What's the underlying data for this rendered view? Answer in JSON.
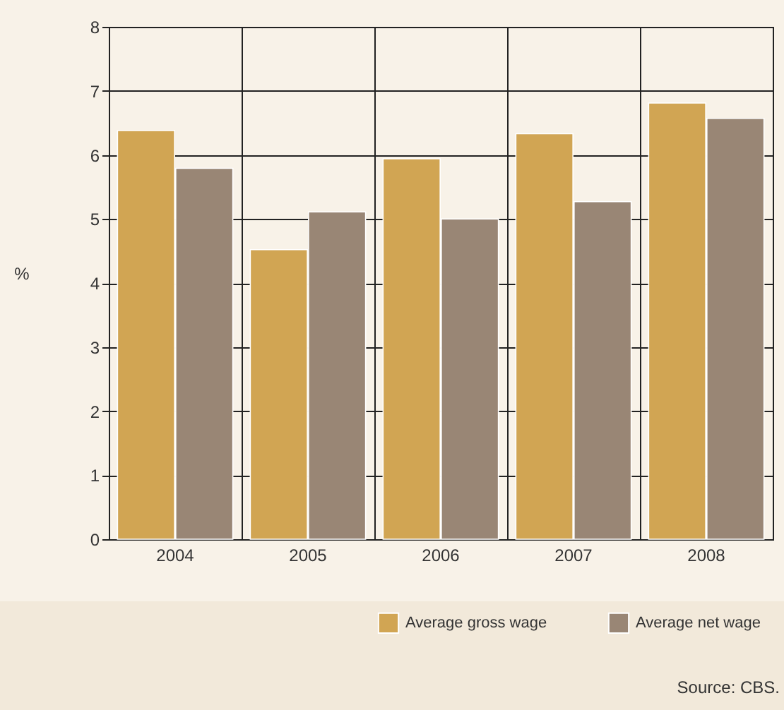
{
  "chart_data": {
    "type": "bar",
    "ylabel": "%",
    "categories": [
      "2004",
      "2005",
      "2006",
      "2007",
      "2008"
    ],
    "series": [
      {
        "name": "Average gross wage",
        "color": "#d1a553",
        "values": [
          6.38,
          4.52,
          5.94,
          6.33,
          6.81
        ]
      },
      {
        "name": "Average net wage",
        "color": "#998675",
        "values": [
          5.79,
          5.11,
          5.0,
          5.27,
          6.57
        ]
      }
    ],
    "ylim": [
      0,
      8
    ],
    "yticks": [
      0,
      1,
      2,
      3,
      4,
      5,
      6,
      7,
      8
    ],
    "grid": true,
    "legend": "bottom right",
    "annotations": [
      "Source: CBS."
    ]
  }
}
